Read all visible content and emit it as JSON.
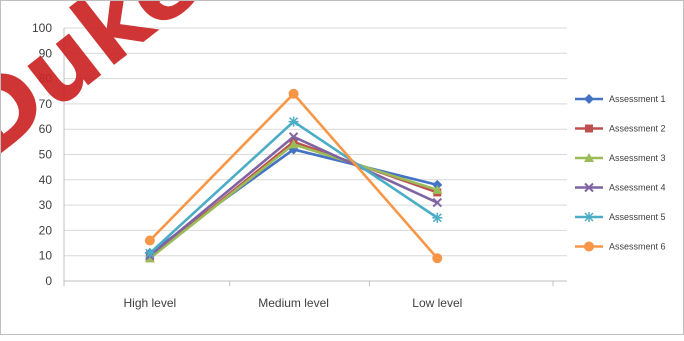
{
  "chart_data": {
    "type": "line",
    "categories": [
      "High level",
      "Medium level",
      "Low level"
    ],
    "ylim": [
      0,
      100
    ],
    "y_ticks": [
      0,
      10,
      20,
      30,
      40,
      50,
      60,
      70,
      80,
      90,
      100
    ],
    "grid": true,
    "legend_position": "right",
    "series": [
      {
        "name": "Assessment 1",
        "values": [
          11,
          52,
          38
        ],
        "color": "#4472c4",
        "marker": "diamond"
      },
      {
        "name": "Assessment 2",
        "values": [
          9,
          55,
          35
        ],
        "color": "#c0504d",
        "marker": "square"
      },
      {
        "name": "Assessment 3",
        "values": [
          9,
          54,
          36
        ],
        "color": "#9bbb59",
        "marker": "triangle"
      },
      {
        "name": "Assessment 4",
        "values": [
          10,
          57,
          31
        ],
        "color": "#8064a2",
        "marker": "x"
      },
      {
        "name": "Assessment 5",
        "values": [
          11,
          63,
          25
        ],
        "color": "#4bacc6",
        "marker": "star"
      },
      {
        "name": "Assessment 6",
        "values": [
          16,
          74,
          9
        ],
        "color": "#f79646",
        "marker": "circle"
      }
    ]
  },
  "watermark": "Duke"
}
